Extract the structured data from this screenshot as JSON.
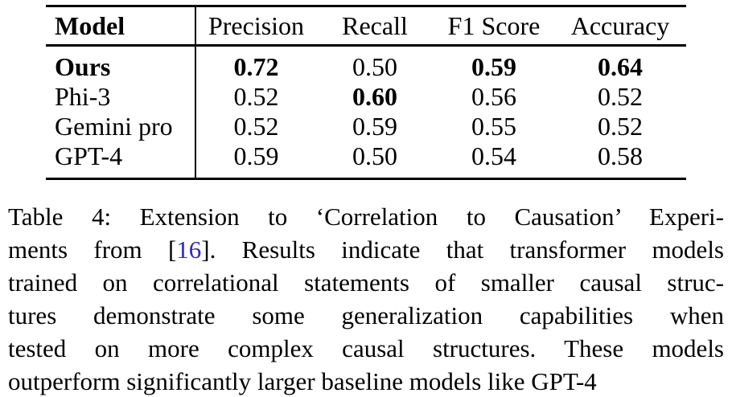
{
  "table": {
    "columns": [
      "Model",
      "Precision",
      "Recall",
      "F1 Score",
      "Accuracy"
    ],
    "rows": [
      {
        "model": "Ours",
        "precision": "0.72",
        "recall": "0.50",
        "f1": "0.59",
        "accuracy": "0.64",
        "bold": [
          "model",
          "precision",
          "f1",
          "accuracy"
        ]
      },
      {
        "model": "Phi-3",
        "precision": "0.52",
        "recall": "0.60",
        "f1": "0.56",
        "accuracy": "0.52",
        "bold": [
          "recall"
        ]
      },
      {
        "model": "Gemini pro",
        "precision": "0.52",
        "recall": "0.59",
        "f1": "0.55",
        "accuracy": "0.52",
        "bold": []
      },
      {
        "model": "GPT-4",
        "precision": "0.59",
        "recall": "0.50",
        "f1": "0.54",
        "accuracy": "0.58",
        "bold": []
      }
    ]
  },
  "caption": {
    "line1": "Table 4: Extension to ‘Correlation to Causation’ Experi-",
    "line2_pre": "ments from [",
    "line2_cite": "16",
    "line2_post": "]. Results indicate that transformer models",
    "line3": "trained on correlational statements of smaller causal struc-",
    "line4": "tures demonstrate some generalization capabilities when",
    "line5": "tested on more complex causal structures. These models",
    "line6": "outperform significantly larger baseline models like GPT-4"
  },
  "colors": {
    "text": "#000000",
    "background": "#ffffff",
    "citation_blue": "#2b28c8"
  }
}
